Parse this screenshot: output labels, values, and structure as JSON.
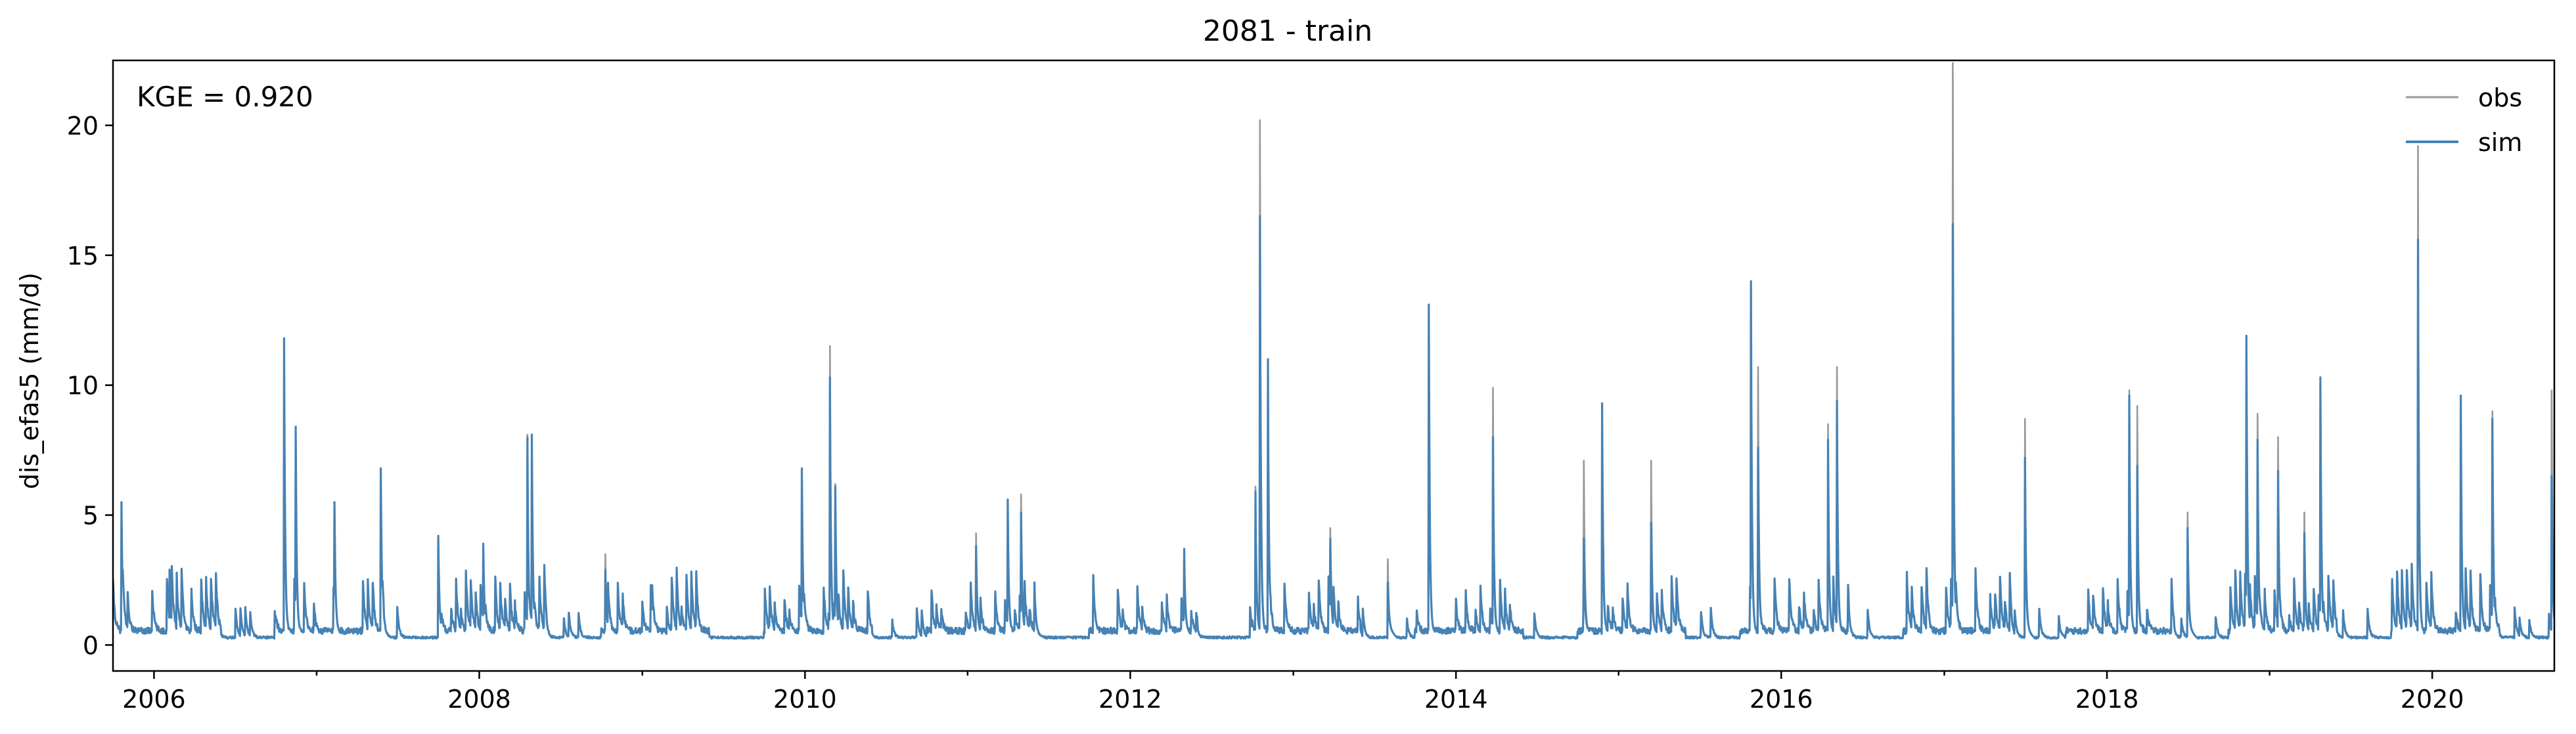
{
  "chart_data": {
    "type": "line",
    "title": "2081 - train",
    "ylabel": "dis_efas5 (mm/d)",
    "xlabel": "",
    "annotation": "KGE = 0.920",
    "xlim": [
      "2005-10-01",
      "2020-10-01"
    ],
    "ylim": [
      -1.0,
      22.5
    ],
    "x_tick_labels": [
      "2006",
      "2008",
      "2010",
      "2012",
      "2014",
      "2016",
      "2018",
      "2020"
    ],
    "y_tick_labels": [
      "0",
      "5",
      "10",
      "15",
      "20"
    ],
    "legend": {
      "placement": "top-right",
      "entries": [
        "obs",
        "sim"
      ]
    },
    "grid": false,
    "baseline": 0.3,
    "series": [
      {
        "name": "obs",
        "color": "#999999",
        "peaks": [
          [
            "2005-10-20",
            4.6
          ],
          [
            "2006-02-05",
            2.0
          ],
          [
            "2006-10-20",
            10.9
          ],
          [
            "2006-11-15",
            7.5
          ],
          [
            "2007-02-10",
            4.6
          ],
          [
            "2007-05-25",
            5.9
          ],
          [
            "2007-10-01",
            3.3
          ],
          [
            "2008-01-10",
            3.0
          ],
          [
            "2008-04-18",
            7.2
          ],
          [
            "2008-04-28",
            7.0
          ],
          [
            "2008-10-10",
            2.6
          ],
          [
            "2009-01-20",
            1.4
          ],
          [
            "2009-12-25",
            5.9
          ],
          [
            "2010-02-26",
            10.6
          ],
          [
            "2010-03-10",
            5.3
          ],
          [
            "2011-01-20",
            3.4
          ],
          [
            "2011-04-01",
            4.7
          ],
          [
            "2011-05-01",
            4.9
          ],
          [
            "2012-05-01",
            2.8
          ],
          [
            "2012-10-08",
            5.2
          ],
          [
            "2012-10-18",
            19.3
          ],
          [
            "2012-11-05",
            10.1
          ],
          [
            "2013-03-25",
            3.6
          ],
          [
            "2013-08-01",
            2.4
          ],
          [
            "2013-11-01",
            12.2
          ],
          [
            "2014-03-25",
            9.0
          ],
          [
            "2014-10-15",
            6.2
          ],
          [
            "2014-11-25",
            8.4
          ],
          [
            "2015-03-15",
            6.2
          ],
          [
            "2015-10-25",
            13.1
          ],
          [
            "2015-11-10",
            9.8
          ],
          [
            "2016-04-15",
            7.6
          ],
          [
            "2016-05-05",
            9.8
          ],
          [
            "2017-01-20",
            21.5
          ],
          [
            "2017-07-01",
            7.8
          ],
          [
            "2018-02-20",
            8.9
          ],
          [
            "2018-03-10",
            8.3
          ],
          [
            "2018-07-01",
            4.2
          ],
          [
            "2018-11-10",
            11.0
          ],
          [
            "2018-12-05",
            8.0
          ],
          [
            "2019-01-20",
            7.1
          ],
          [
            "2019-03-20",
            4.2
          ],
          [
            "2019-04-25",
            9.4
          ],
          [
            "2019-11-30",
            18.3
          ],
          [
            "2020-03-05",
            8.7
          ],
          [
            "2020-05-15",
            8.1
          ],
          [
            "2020-09-25",
            8.9
          ]
        ]
      },
      {
        "name": "sim",
        "color": "#4682b4",
        "peaks": [
          [
            "2005-10-20",
            4.6
          ],
          [
            "2006-02-05",
            2.0
          ],
          [
            "2006-10-20",
            10.9
          ],
          [
            "2006-11-15",
            7.5
          ],
          [
            "2007-02-10",
            4.6
          ],
          [
            "2007-05-25",
            5.9
          ],
          [
            "2007-10-01",
            3.3
          ],
          [
            "2008-01-10",
            3.0
          ],
          [
            "2008-04-18",
            7.1
          ],
          [
            "2008-04-28",
            7.2
          ],
          [
            "2008-10-10",
            2.0
          ],
          [
            "2009-01-20",
            1.4
          ],
          [
            "2009-12-25",
            5.9
          ],
          [
            "2010-02-26",
            9.4
          ],
          [
            "2010-03-10",
            5.2
          ],
          [
            "2011-01-20",
            2.9
          ],
          [
            "2011-04-01",
            4.7
          ],
          [
            "2011-05-01",
            4.2
          ],
          [
            "2012-05-01",
            2.8
          ],
          [
            "2012-10-08",
            5.0
          ],
          [
            "2012-10-18",
            15.6
          ],
          [
            "2012-11-05",
            10.1
          ],
          [
            "2013-03-25",
            3.2
          ],
          [
            "2013-08-01",
            1.5
          ],
          [
            "2013-11-01",
            12.2
          ],
          [
            "2014-03-25",
            7.1
          ],
          [
            "2014-10-15",
            3.2
          ],
          [
            "2014-11-25",
            8.4
          ],
          [
            "2015-03-15",
            3.8
          ],
          [
            "2015-10-25",
            13.1
          ],
          [
            "2015-11-10",
            6.7
          ],
          [
            "2016-04-15",
            7.0
          ],
          [
            "2016-05-05",
            8.5
          ],
          [
            "2017-01-20",
            15.3
          ],
          [
            "2017-07-01",
            6.3
          ],
          [
            "2018-02-20",
            8.7
          ],
          [
            "2018-03-10",
            6.0
          ],
          [
            "2018-07-01",
            3.6
          ],
          [
            "2018-11-10",
            11.0
          ],
          [
            "2018-12-05",
            7.0
          ],
          [
            "2019-01-20",
            5.8
          ],
          [
            "2019-03-20",
            3.4
          ],
          [
            "2019-04-25",
            9.4
          ],
          [
            "2019-11-30",
            14.7
          ],
          [
            "2020-03-05",
            8.7
          ],
          [
            "2020-05-15",
            7.8
          ],
          [
            "2020-09-25",
            5.6
          ]
        ]
      }
    ]
  }
}
